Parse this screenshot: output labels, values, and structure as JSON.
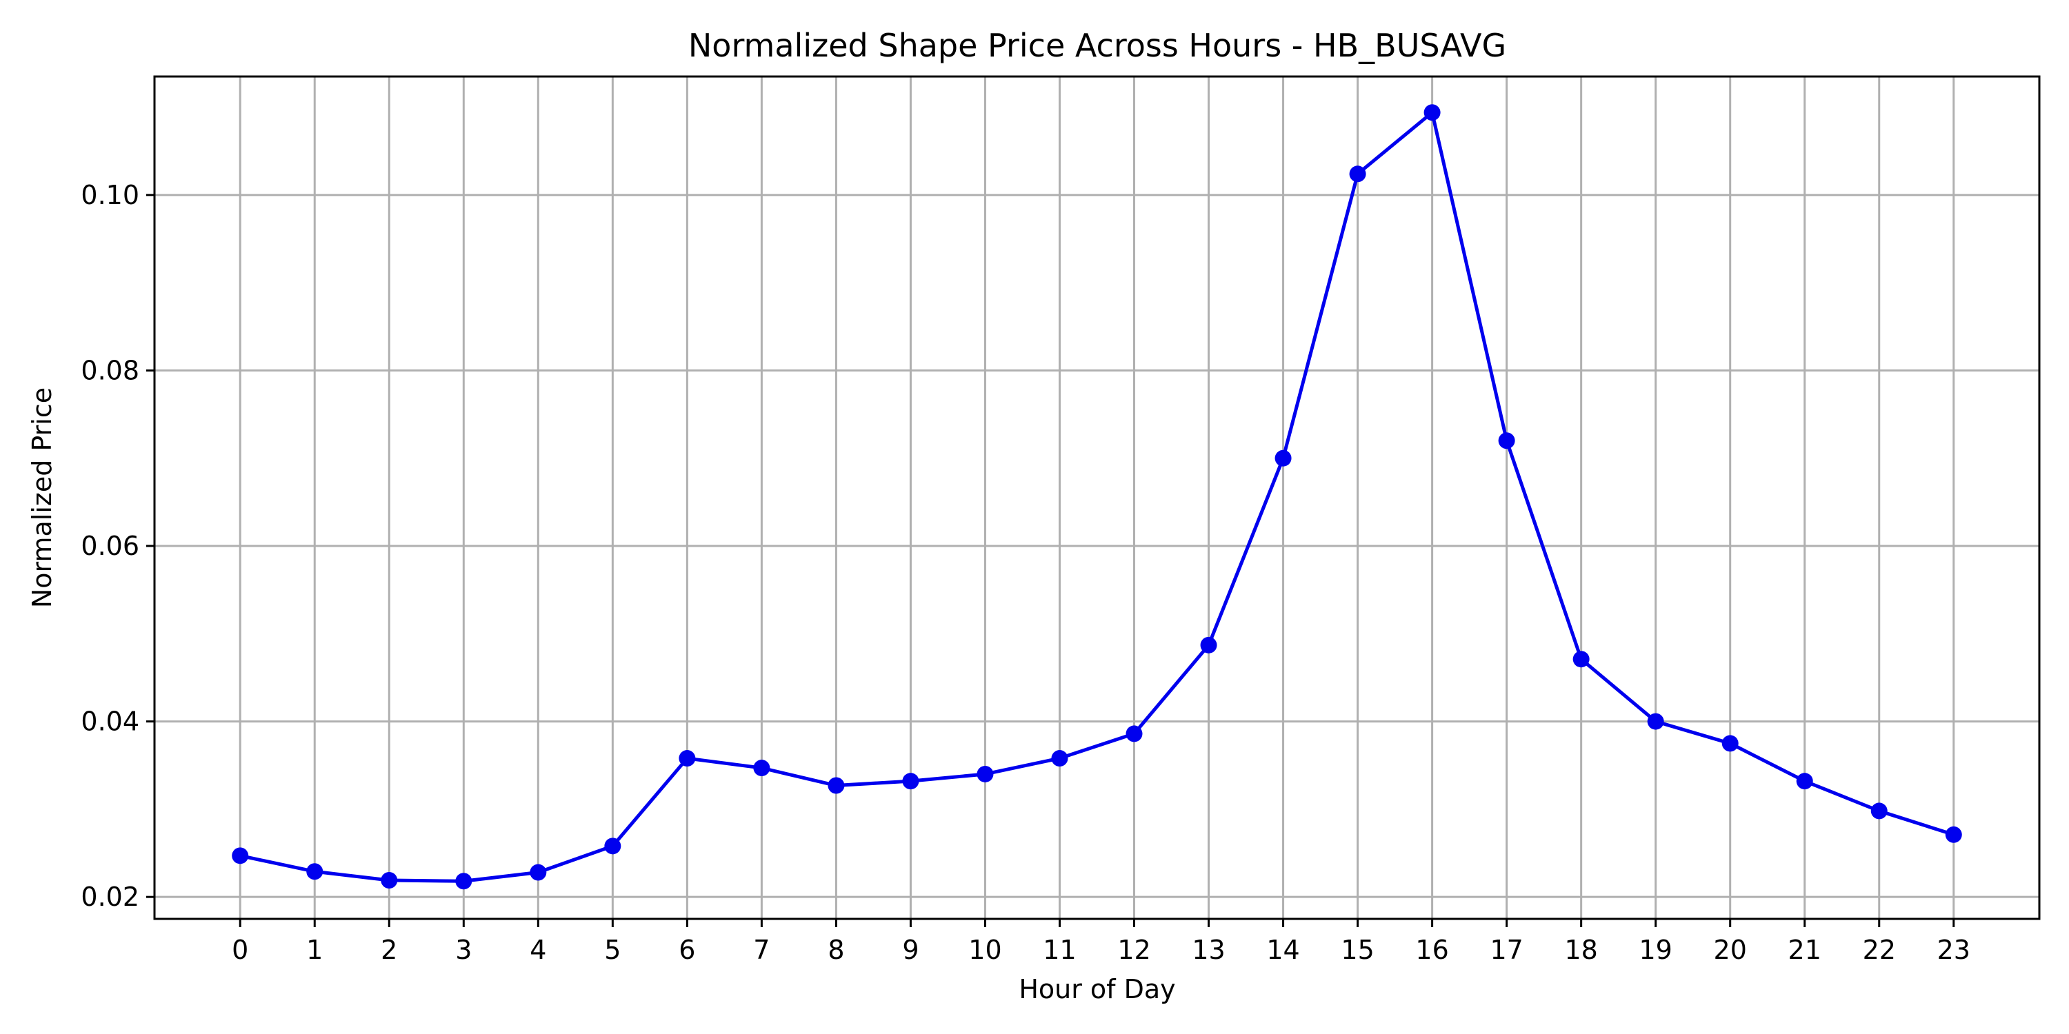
{
  "chart_data": {
    "type": "line",
    "title": "Normalized Shape Price Across Hours - HB_BUSAVG",
    "xlabel": "Hour of Day",
    "ylabel": "Normalized Price",
    "x": [
      0,
      1,
      2,
      3,
      4,
      5,
      6,
      7,
      8,
      9,
      10,
      11,
      12,
      13,
      14,
      15,
      16,
      17,
      18,
      19,
      20,
      21,
      22,
      23
    ],
    "x_tick_labels": [
      "0",
      "1",
      "2",
      "3",
      "4",
      "5",
      "6",
      "7",
      "8",
      "9",
      "10",
      "11",
      "12",
      "13",
      "14",
      "15",
      "16",
      "17",
      "18",
      "19",
      "20",
      "21",
      "22",
      "23"
    ],
    "y_ticks": [
      0.02,
      0.04,
      0.06,
      0.08,
      0.1
    ],
    "y_tick_labels": [
      "0.02",
      "0.04",
      "0.06",
      "0.08",
      "0.10"
    ],
    "xlim": [
      -1.15,
      24.15
    ],
    "ylim": [
      0.0175,
      0.1135
    ],
    "grid": true,
    "series": [
      {
        "color": "#0000ee",
        "marker": "circle",
        "values": [
          0.0247,
          0.0229,
          0.0219,
          0.0218,
          0.0228,
          0.0258,
          0.0358,
          0.0347,
          0.0327,
          0.0332,
          0.034,
          0.0358,
          0.0386,
          0.0487,
          0.07,
          0.1024,
          0.1094,
          0.072,
          0.0471,
          0.04,
          0.0375,
          0.0332,
          0.0298,
          0.0271
        ]
      }
    ]
  }
}
